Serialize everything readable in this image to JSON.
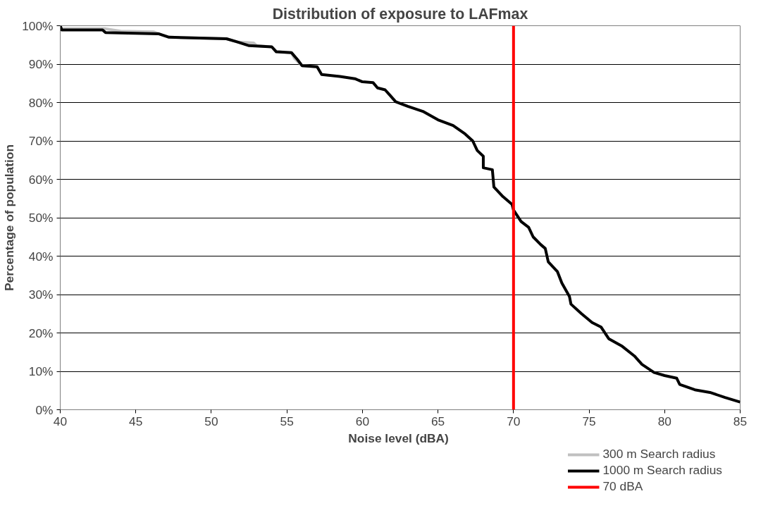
{
  "chart_data": {
    "type": "line",
    "title": "Distribution of exposure to LAFmax",
    "xlabel": "Noise level  (dBA)",
    "ylabel": "Percentage of population",
    "xlim": [
      40,
      85
    ],
    "xticks": [
      40,
      45,
      50,
      55,
      60,
      65,
      70,
      75,
      80,
      85
    ],
    "ylim": [
      0,
      100
    ],
    "yticks": [
      {
        "value": 0,
        "label": "0%"
      },
      {
        "value": 10,
        "label": "10%"
      },
      {
        "value": 20,
        "label": "20%"
      },
      {
        "value": 30,
        "label": "30%"
      },
      {
        "value": 40,
        "label": "40%"
      },
      {
        "value": 50,
        "label": "50%"
      },
      {
        "value": 60,
        "label": "60%"
      },
      {
        "value": 70,
        "label": "70%"
      },
      {
        "value": 80,
        "label": "80%"
      },
      {
        "value": 90,
        "label": "90%"
      },
      {
        "value": 100,
        "label": "100%"
      }
    ],
    "grid": "y",
    "legend": "bottom right",
    "marker": "none",
    "line_style": "solid",
    "series": [
      {
        "name": "300 m Search radius",
        "color": "#c0c0c0",
        "x": [
          40,
          40.1,
          43,
          44,
          46.2,
          46.5,
          47.2,
          51,
          51.7,
          52.8,
          53,
          54,
          54.3,
          55.3,
          55.5,
          56,
          57
        ],
        "values": [
          100,
          99.2,
          99.2,
          98.6,
          98.4,
          97.9,
          97,
          96.6,
          95.8,
          95.5,
          94.8,
          94.5,
          93.3,
          93,
          91.5,
          89.6,
          89.3
        ]
      },
      {
        "name": "1000 m Search radius",
        "color": "#000000",
        "x": [
          40,
          40.1,
          42.8,
          43,
          46.5,
          47.2,
          51,
          51.7,
          52.5,
          54,
          54.3,
          55.3,
          55.7,
          56,
          57,
          57.3,
          58.5,
          59.5,
          60,
          60.7,
          61,
          61.5,
          61.8,
          62.2,
          63,
          64,
          65,
          66,
          66.8,
          67.3,
          67.6,
          68,
          68,
          68.6,
          68.7,
          69.3,
          69.9,
          70,
          70.5,
          71,
          71.3,
          71.8,
          72.1,
          72.3,
          72.9,
          73.2,
          73.7,
          73.8,
          74.5,
          75.2,
          75.8,
          76.3,
          77.2,
          78,
          78.5,
          79.3,
          80,
          80.8,
          81,
          82,
          83,
          84,
          85
        ],
        "values": [
          100,
          98.9,
          98.9,
          98.2,
          97.9,
          97,
          96.6,
          95.8,
          94.8,
          94.5,
          93.2,
          93,
          91.2,
          89.6,
          89.3,
          87.3,
          86.8,
          86.2,
          85.4,
          85.2,
          83.8,
          83.3,
          82,
          80.2,
          79,
          77.7,
          75.5,
          74,
          71.8,
          70,
          67.5,
          66,
          63,
          62.5,
          58,
          55.5,
          53.5,
          52,
          49,
          47.5,
          45,
          43,
          42,
          38.5,
          36,
          33,
          29.5,
          27.5,
          25,
          22.7,
          21.5,
          18.5,
          16.5,
          14,
          11.8,
          9.7,
          8.9,
          8.2,
          6.6,
          5.2,
          4.5,
          3.2,
          2.0
        ]
      }
    ],
    "ref_lines": [
      {
        "axis": "x",
        "value": 70,
        "label": "70 dBA",
        "color": "#ff0000"
      }
    ]
  }
}
